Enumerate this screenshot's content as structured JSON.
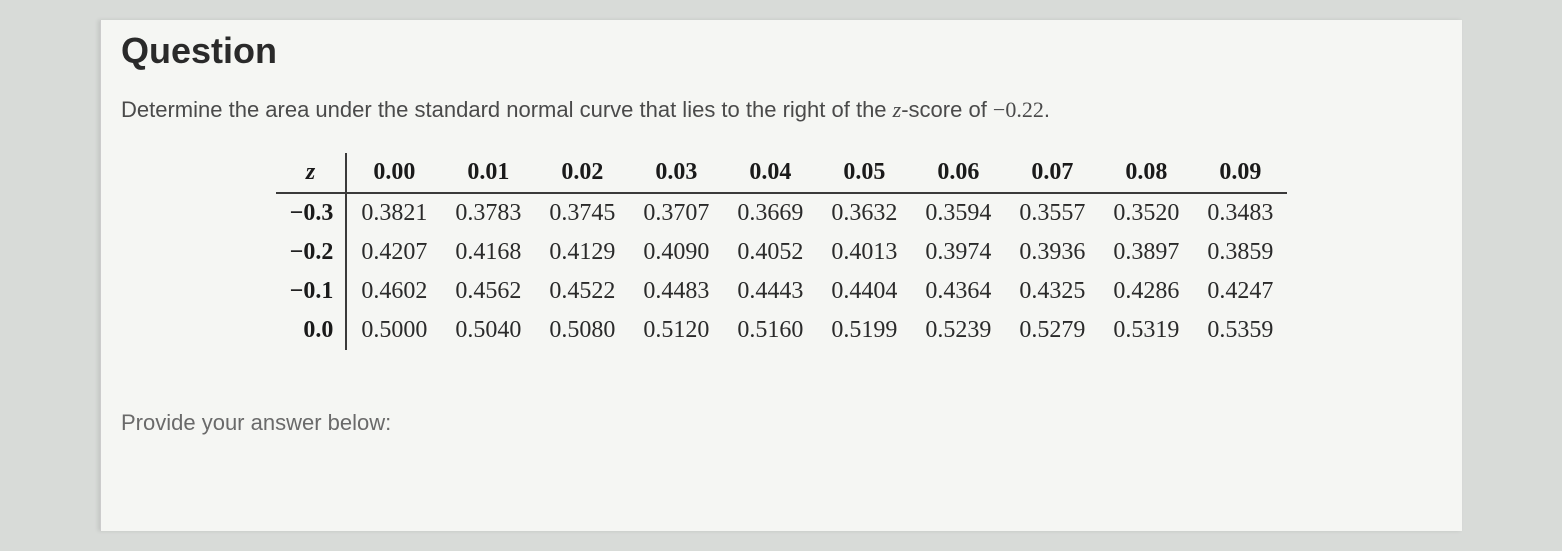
{
  "title": "Question",
  "prompt_prefix": "Determine the area under the standard normal curve that lies to the right of the ",
  "prompt_var": "z",
  "prompt_mid": "-score of ",
  "prompt_value": "−0.22",
  "prompt_suffix": ".",
  "answer_prompt": "Provide your answer below:",
  "table": {
    "z_label": "z",
    "col_headers": [
      "0.00",
      "0.01",
      "0.02",
      "0.03",
      "0.04",
      "0.05",
      "0.06",
      "0.07",
      "0.08",
      "0.09"
    ],
    "rows": [
      {
        "label": "−0.3",
        "values": [
          "0.3821",
          "0.3783",
          "0.3745",
          "0.3707",
          "0.3669",
          "0.3632",
          "0.3594",
          "0.3557",
          "0.3520",
          "0.3483"
        ]
      },
      {
        "label": "−0.2",
        "values": [
          "0.4207",
          "0.4168",
          "0.4129",
          "0.4090",
          "0.4052",
          "0.4013",
          "0.3974",
          "0.3936",
          "0.3897",
          "0.3859"
        ]
      },
      {
        "label": "−0.1",
        "values": [
          "0.4602",
          "0.4562",
          "0.4522",
          "0.4483",
          "0.4443",
          "0.4404",
          "0.4364",
          "0.4325",
          "0.4286",
          "0.4247"
        ]
      },
      {
        "label": "0.0",
        "values": [
          "0.5000",
          "0.5040",
          "0.5080",
          "0.5120",
          "0.5160",
          "0.5199",
          "0.5239",
          "0.5279",
          "0.5319",
          "0.5359"
        ]
      }
    ]
  },
  "styling": {
    "background_color": "#d8dbd8",
    "content_background": "#f5f6f3",
    "title_color": "#2a2a2a",
    "text_color": "#4a4a4a",
    "table_border_color": "#3a3a3a",
    "answer_prompt_color": "#6a6a6a",
    "title_fontsize": 36,
    "prompt_fontsize": 22,
    "table_fontsize": 24
  }
}
